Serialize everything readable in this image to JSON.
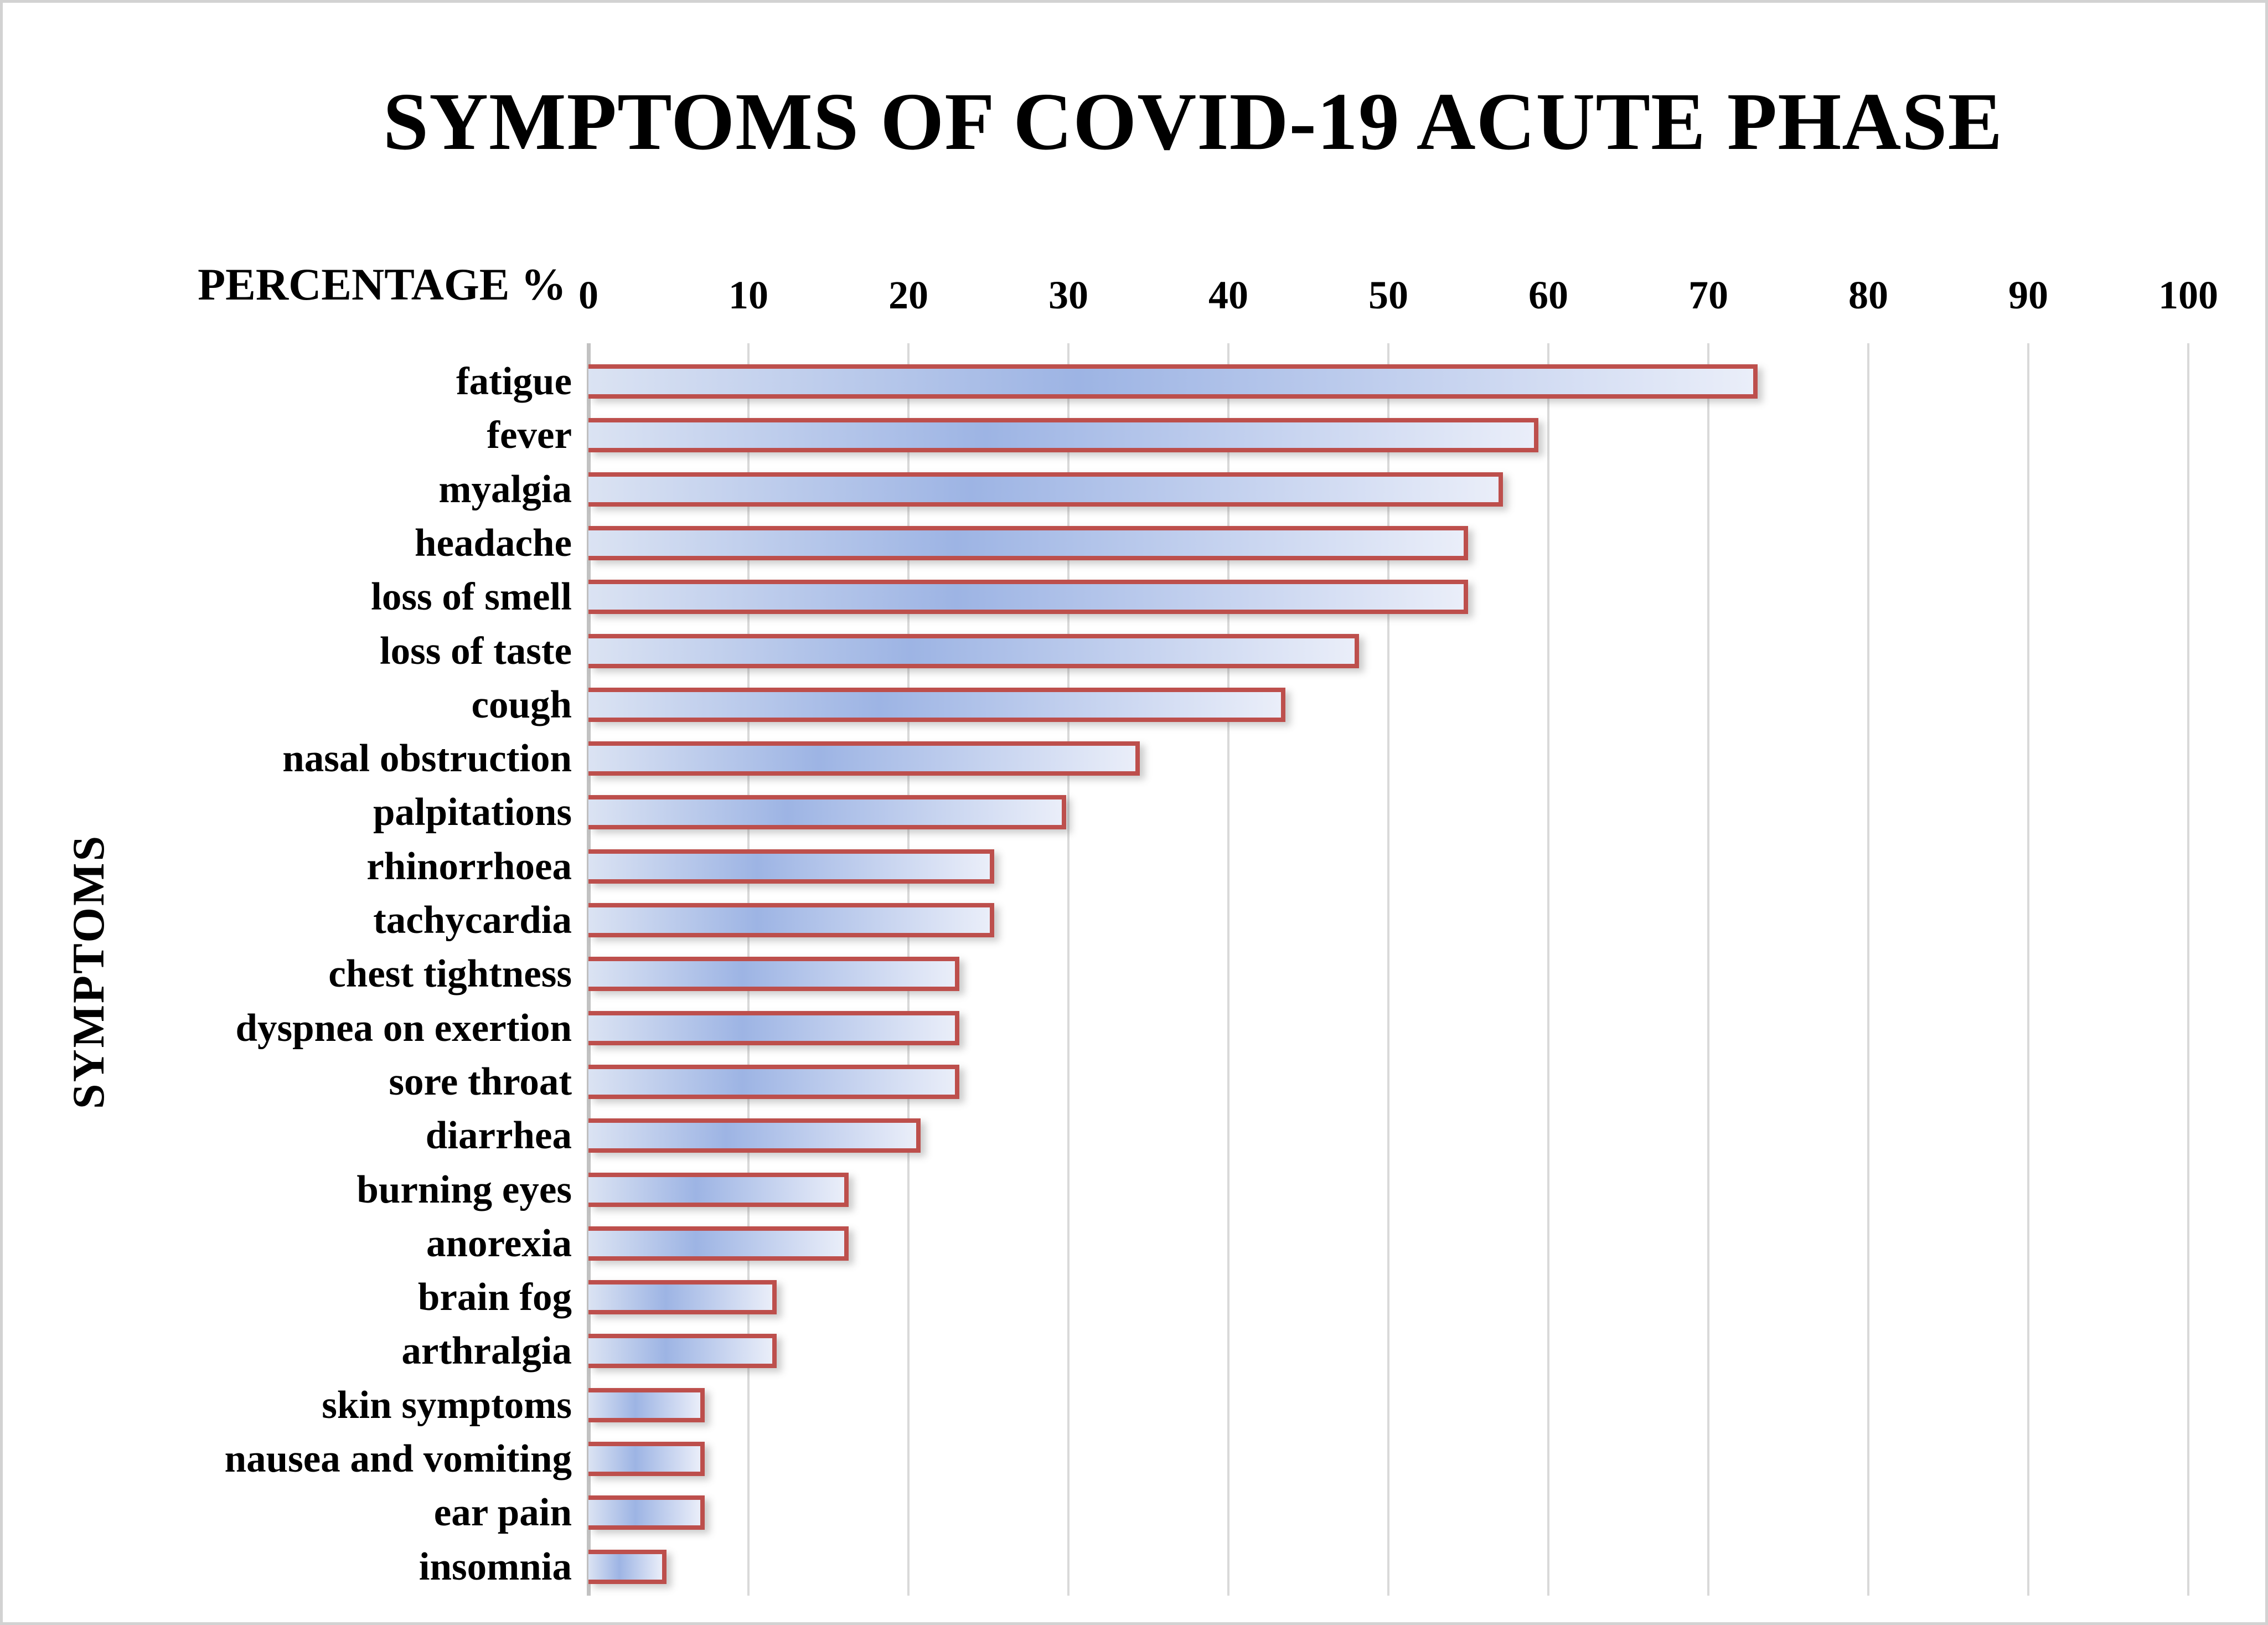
{
  "chart_data": {
    "type": "bar",
    "orientation": "horizontal",
    "title": "SYMPTOMS OF COVID-19 ACUTE PHASE",
    "xlabel": "PERCENTAGE %",
    "ylabel": "SYMPTOMS",
    "xlim": [
      0,
      100
    ],
    "xticks": [
      0,
      10,
      20,
      30,
      40,
      50,
      60,
      70,
      80,
      90,
      100
    ],
    "grid": true,
    "legend_position": "none",
    "categories": [
      "fatigue",
      "fever",
      "myalgia",
      "headache",
      "loss of smell",
      "loss of taste",
      "cough",
      "nasal obstruction",
      "palpitations",
      "rhinorrhoea",
      "tachycardia",
      "chest tightness",
      "dyspnea on exertion",
      "sore throat",
      "diarrhea",
      "burning eyes",
      "anorexia",
      "brain fog",
      "arthralgia",
      "skin symptoms",
      "nausea and vomiting",
      "ear pain",
      "insomnia"
    ],
    "values": [
      72.8,
      59.1,
      56.9,
      54.7,
      54.7,
      47.9,
      43.3,
      34.2,
      29.6,
      25.1,
      25.1,
      22.9,
      22.9,
      22.9,
      20.5,
      16.0,
      16.0,
      11.5,
      11.5,
      7.0,
      7.0,
      7.0,
      4.6
    ],
    "colors": {
      "bar_border": "#bd4f4c",
      "bar_fill_start": "#dbe3f3",
      "bar_fill_dark": "#9db4e4",
      "bar_fill_end": "#eaeef9",
      "gridline": "#d9d9d9",
      "axis_line": "#c2c2c2",
      "text": "#000000",
      "frame_border": "#d2d2d2",
      "background": "#ffffff"
    }
  }
}
